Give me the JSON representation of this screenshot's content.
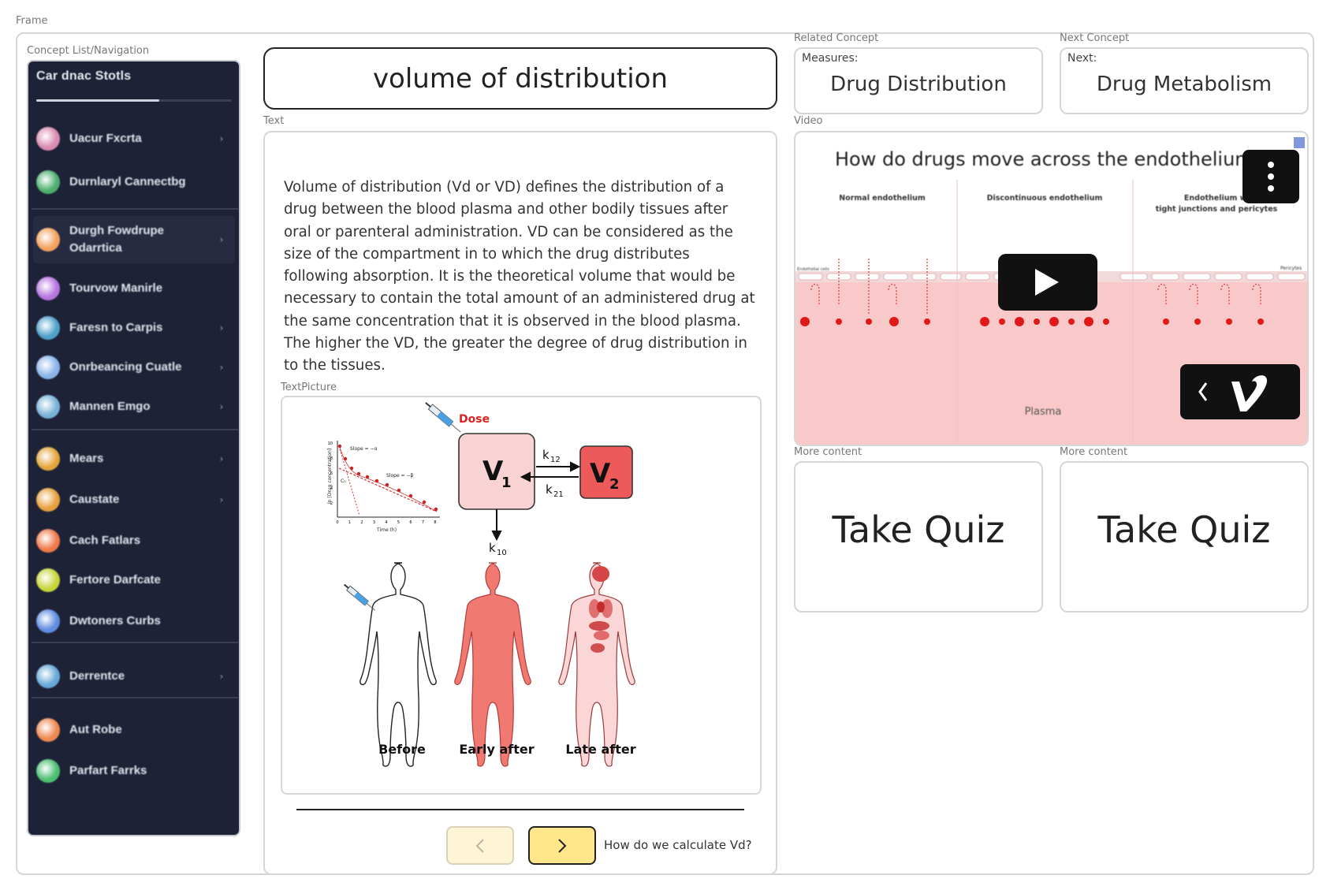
{
  "frame": {
    "label": "Frame"
  },
  "sidebar": {
    "caption": "Concept List/Navigation",
    "title": "Car dnac Stotls",
    "progress": 0.63,
    "items": [
      {
        "label": "Uacur Fxcrta",
        "chevron": true,
        "color": "#d98bb0"
      },
      {
        "label": "Durnlaryl Cannectbg",
        "chevron": false,
        "color": "#4caf6e"
      },
      {
        "label": "Durgh Fowdrupe Odarrtica",
        "chevron": true,
        "color": "#f2a25e"
      },
      {
        "label": "Tourvow Manirle",
        "chevron": false,
        "color": "#b676e0"
      },
      {
        "label": "Faresn to Carpis",
        "chevron": true,
        "color": "#4fa1c9"
      },
      {
        "label": "Onrbeancing Cuatle",
        "chevron": true,
        "color": "#8ab4e8"
      },
      {
        "label": "Mannen Emgo",
        "chevron": true,
        "color": "#78b2d8"
      },
      {
        "label": "Mears",
        "chevron": true,
        "color": "#e4a63c"
      },
      {
        "label": "Caustate",
        "chevron": true,
        "color": "#e7a13e"
      },
      {
        "label": "Cach Fatlars",
        "chevron": false,
        "color": "#ef7a4a"
      },
      {
        "label": "Fertore Darfcate",
        "chevron": false,
        "color": "#c6d63a"
      },
      {
        "label": "Dwtoners Curbs",
        "chevron": false,
        "color": "#5f8de0"
      },
      {
        "label": "Derrentce",
        "chevron": true,
        "color": "#68a8d6"
      },
      {
        "label": "Aut Robe",
        "chevron": false,
        "color": "#ee8a52"
      },
      {
        "label": "Parfart Farrks",
        "chevron": false,
        "color": "#4cbf73"
      }
    ]
  },
  "title": {
    "text": "volume of distribution"
  },
  "related": {
    "caption": "Related Concept",
    "label": "Measures:",
    "value": "Drug Distribution"
  },
  "next_concept": {
    "caption": "Next Concept",
    "label": "Next:",
    "value": "Drug Metabolism"
  },
  "text_section": {
    "caption": "Text",
    "paragraph": "Volume of distribution (Vd or VD) defines the distribution of a drug between the blood plasma and other bodily tissues after oral or parenteral administration. VD can be considered as the size of the compartment in to which the drug distributes following absorption. It is the theoretical volume that would be necessary to contain the total amount of an administered drug at the same concentration that it is observed in the blood plasma. The higher the VD, the greater the degree of drug distribution in to the tissues.",
    "picture_caption": "TextPicture",
    "next_hint": "How do we calculate Vd?"
  },
  "figure": {
    "dose": "Dose",
    "graph_ylabel": "ln [Drug concentration]",
    "graph_xlabel": "Time (h)",
    "slope_alpha": "Slope = −α",
    "slope_beta": "Slope = −β",
    "c0": "C₀",
    "y_ticks": [
      "10",
      "8",
      "6",
      "4",
      "2"
    ],
    "x_ticks": [
      "0",
      "1",
      "2",
      "3",
      "4",
      "5",
      "6",
      "7",
      "8"
    ],
    "v1": "V",
    "v1_sub": "1",
    "v2": "V",
    "v2_sub": "2",
    "k12": "k",
    "k12_sub": "12",
    "k21": "k",
    "k21_sub": "21",
    "k10": "k",
    "k10_sub": "10",
    "before": "Before",
    "early": "Early after",
    "late": "Late after"
  },
  "video": {
    "caption": "Video",
    "title": "How do drugs move across the endothelium?",
    "col1": "Normal endothelium",
    "col2": "Discontinuous endothelium",
    "col3a": "Endothelium with",
    "col3b": "tight junctions and pericytes",
    "left_tag": "Endothelial cells",
    "right_tag": "Pericytes",
    "plasma": "Plasma"
  },
  "more_content": [
    {
      "caption": "More content",
      "label": "Take Quiz"
    },
    {
      "caption": "More content",
      "label": "Take Quiz"
    }
  ],
  "colors": {
    "sidebar_bg": "#1d2237",
    "next_button": "#ffe68a",
    "prev_button": "#fdf5d6",
    "plasma": "#f9c9c9",
    "v1_fill": "#f9d3d3",
    "v2_fill": "#ee5a5a"
  }
}
